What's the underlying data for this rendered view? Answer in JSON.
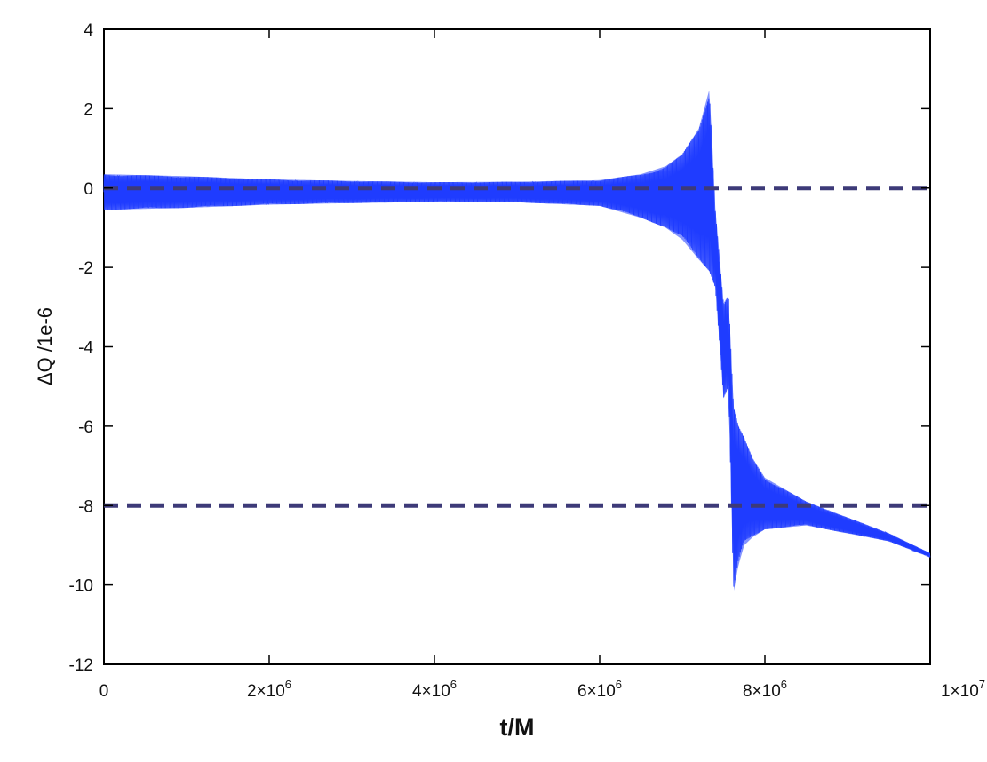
{
  "chart_data": {
    "type": "line",
    "title": "",
    "xlabel": "t/M",
    "ylabel": "ΔQ /1e-6",
    "xlim": [
      0,
      10000000
    ],
    "ylim": [
      -12,
      4
    ],
    "x_tick_labels": [
      {
        "value": 0,
        "mantissa": "0",
        "exp": ""
      },
      {
        "value": 2000000,
        "mantissa": "2×10",
        "exp": "6"
      },
      {
        "value": 4000000,
        "mantissa": "4×10",
        "exp": "6"
      },
      {
        "value": 6000000,
        "mantissa": "6×10",
        "exp": "6"
      },
      {
        "value": 8000000,
        "mantissa": "8×10",
        "exp": "6"
      },
      {
        "value": 10000000,
        "mantissa": "1×10",
        "exp": "7"
      }
    ],
    "y_ticks": [
      4,
      2,
      0,
      -2,
      -4,
      -6,
      -8,
      -10,
      -12
    ],
    "y_tick_labels": [
      "4",
      "2",
      "0",
      "-2",
      "-4",
      "-6",
      "-8",
      "-10",
      "-12"
    ],
    "grid": false,
    "legend": "none",
    "series": [
      {
        "style": "oscillating band",
        "color": "#1f3cff",
        "x": [
          0,
          1000000,
          2000000,
          3000000,
          4000000,
          5000000,
          6000000,
          6500000,
          6800000,
          7000000,
          7200000,
          7330000,
          7400000,
          7500000,
          7560000,
          7620000,
          7680000,
          7750000,
          7850000,
          8000000,
          8500000,
          9000000,
          9500000,
          10000000
        ],
        "upper": [
          0.35,
          0.3,
          0.22,
          0.18,
          0.15,
          0.16,
          0.2,
          0.35,
          0.55,
          0.85,
          1.5,
          2.5,
          -0.5,
          -2.9,
          -2.7,
          -5.5,
          -6.0,
          -6.3,
          -6.8,
          -7.3,
          -7.9,
          -8.3,
          -8.7,
          -9.2
        ],
        "lower": [
          -0.55,
          -0.5,
          -0.42,
          -0.38,
          -0.35,
          -0.36,
          -0.45,
          -0.75,
          -1.0,
          -1.3,
          -1.8,
          -2.1,
          -2.5,
          -5.3,
          -5.0,
          -10.2,
          -9.5,
          -9.0,
          -8.8,
          -8.6,
          -8.5,
          -8.7,
          -8.9,
          -9.3
        ]
      }
    ],
    "reference_lines": [
      {
        "y": 0,
        "color": "#3d3a78",
        "style": "dashed"
      },
      {
        "y": -8,
        "color": "#3d3a78",
        "style": "dashed"
      }
    ]
  }
}
